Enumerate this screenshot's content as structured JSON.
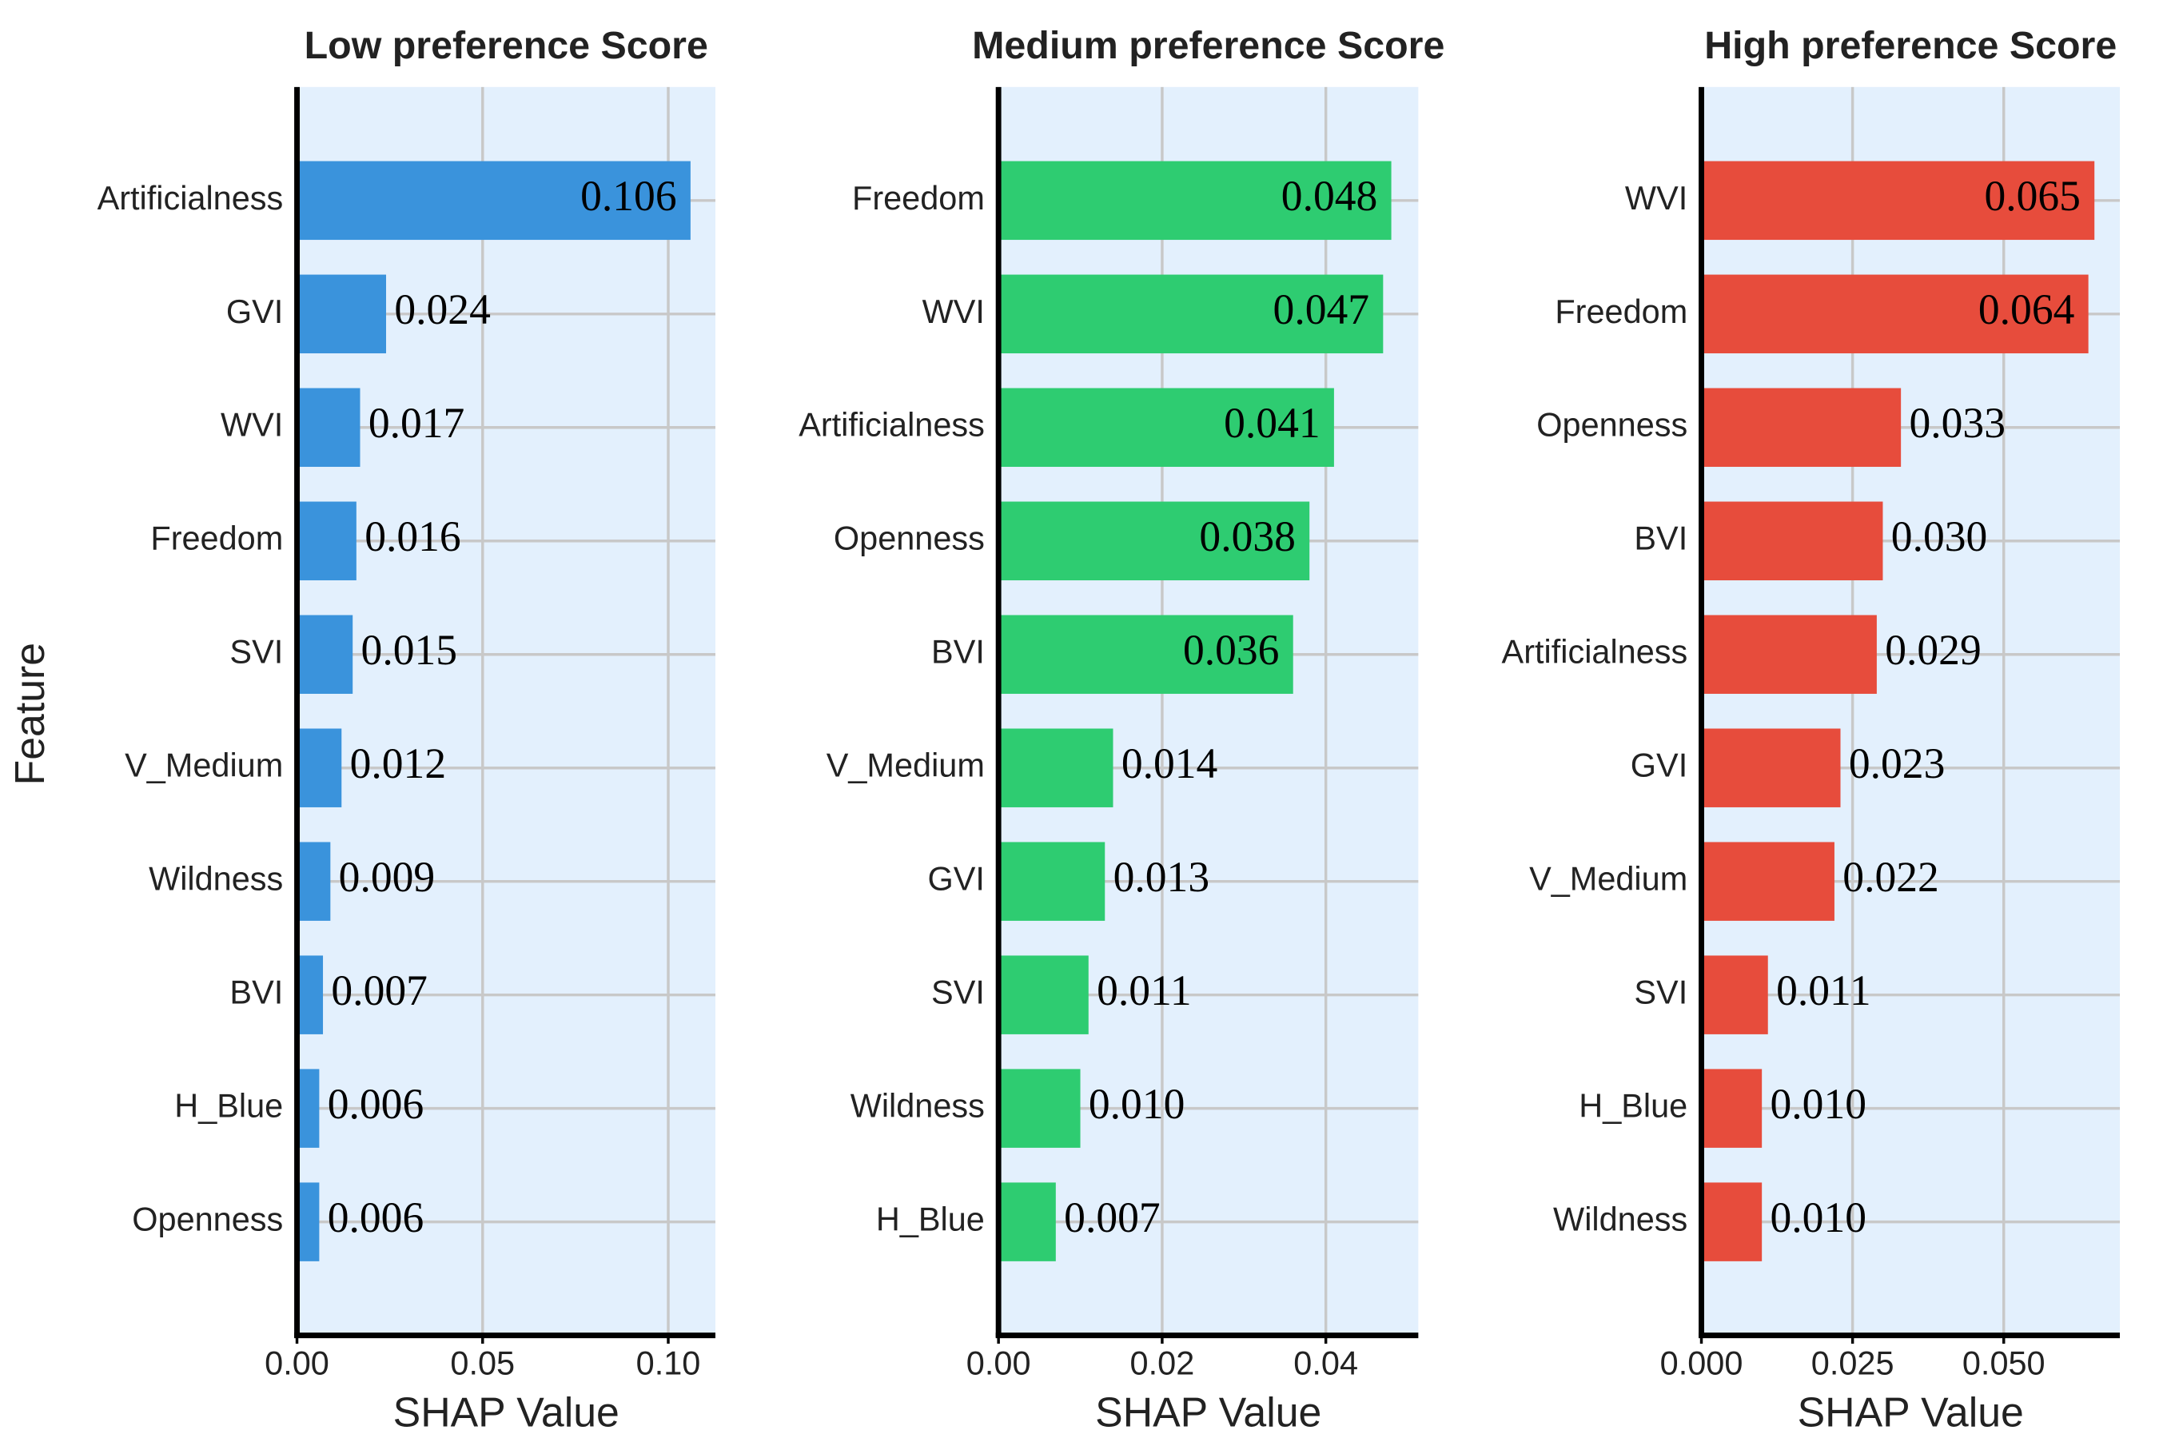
{
  "chart_data": [
    {
      "type": "bar",
      "title": "Low preference Score",
      "xlabel": "SHAP Value",
      "ylabel": "Feature",
      "categories": [
        "Artificialness",
        "GVI",
        "WVI",
        "Freedom",
        "SVI",
        "V_Medium",
        "Wildness",
        "BVI",
        "H_Blue",
        "Openness"
      ],
      "values": [
        0.106,
        0.024,
        0.017,
        0.016,
        0.015,
        0.012,
        0.009,
        0.007,
        0.006,
        0.006
      ],
      "value_labels": [
        "0.106",
        "0.024",
        "0.017",
        "0.016",
        "0.015",
        "0.012",
        "0.009",
        "0.007",
        "0.006",
        "0.006"
      ],
      "color": "#3a93dc",
      "xlim": [
        0,
        0.1127
      ],
      "xticks": [
        {
          "value": 0,
          "label": "0.00"
        },
        {
          "value": 0.05,
          "label": "0.05"
        },
        {
          "value": 0.1,
          "label": "0.10"
        }
      ],
      "grid": true
    },
    {
      "type": "bar",
      "title": "Medium preference Score",
      "xlabel": "SHAP Value",
      "categories": [
        "Freedom",
        "WVI",
        "Artificialness",
        "Openness",
        "BVI",
        "V_Medium",
        "GVI",
        "SVI",
        "Wildness",
        "H_Blue"
      ],
      "values": [
        0.048,
        0.047,
        0.041,
        0.038,
        0.036,
        0.014,
        0.013,
        0.011,
        0.01,
        0.007
      ],
      "value_labels": [
        "0.048",
        "0.047",
        "0.041",
        "0.038",
        "0.036",
        "0.014",
        "0.013",
        "0.011",
        "0.010",
        "0.007"
      ],
      "color": "#2ecc71",
      "xlim": [
        0,
        0.0513
      ],
      "xticks": [
        {
          "value": 0,
          "label": "0.00"
        },
        0.02,
        0.04
      ],
      "grid": true
    },
    {
      "type": "bar",
      "title": "High preference Score",
      "xlabel": "SHAP Value",
      "categories": [
        "WVI",
        "Freedom",
        "Openness",
        "BVI",
        "Artificialness",
        "GVI",
        "V_Medium",
        "SVI",
        "H_Blue",
        "Wildness"
      ],
      "values": [
        0.065,
        0.064,
        0.033,
        0.03,
        0.029,
        0.023,
        0.022,
        0.011,
        0.01,
        0.01
      ],
      "value_labels": [
        "0.065",
        "0.064",
        "0.033",
        "0.030",
        "0.029",
        "0.023",
        "0.022",
        "0.011",
        "0.010",
        "0.010"
      ],
      "color": "#e74c3c",
      "xlim": [
        0,
        0.0692
      ],
      "xticks": [
        {
          "value": 0,
          "label": "0.000"
        },
        0.025,
        {
          "value": 0.05,
          "label": "0.050"
        }
      ],
      "grid": true
    }
  ]
}
